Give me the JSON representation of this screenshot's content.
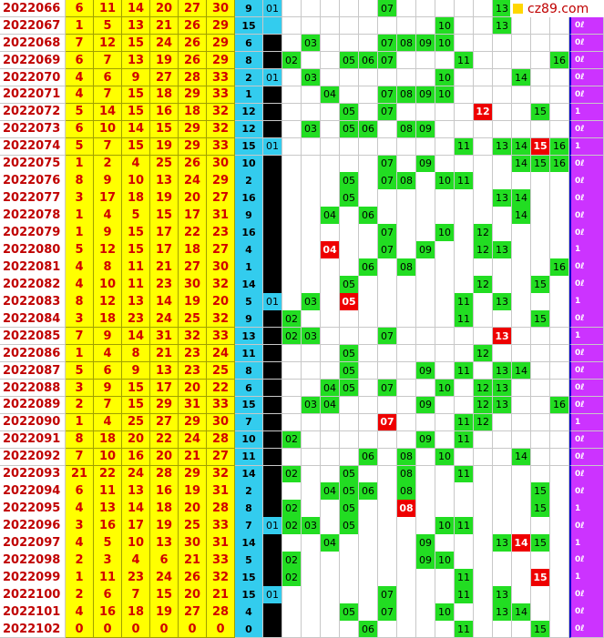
{
  "logo": "cz89.com",
  "rows": [
    {
      "issue": "2022066",
      "reds": [
        6,
        11,
        14,
        20,
        27,
        30
      ],
      "blue": 9,
      "dark": false,
      "c1": "01",
      "cells": [
        "07",
        "13"
      ],
      "hot": []
    },
    {
      "issue": "2022067",
      "reds": [
        1,
        5,
        13,
        21,
        26,
        29
      ],
      "blue": 15,
      "dark": false,
      "cells": [
        "10",
        "13"
      ],
      "hot": [],
      "tag": "0ℓ"
    },
    {
      "issue": "2022068",
      "reds": [
        7,
        12,
        15,
        24,
        26,
        29
      ],
      "blue": 6,
      "dark": true,
      "cells": [
        "03",
        "07",
        "08",
        "09",
        "10"
      ],
      "hot": [],
      "tag": "0ℓ"
    },
    {
      "issue": "2022069",
      "reds": [
        6,
        7,
        13,
        19,
        26,
        29
      ],
      "blue": 8,
      "dark": true,
      "cells": [
        "02",
        "05",
        "06",
        "07",
        "11",
        "16"
      ],
      "hot": [],
      "tag": "0ℓ"
    },
    {
      "issue": "2022070",
      "reds": [
        4,
        6,
        9,
        27,
        28,
        33
      ],
      "blue": 2,
      "dark": false,
      "c1": "01",
      "cells": [
        "03",
        "10",
        "14"
      ],
      "hot": [],
      "tag": "0ℓ"
    },
    {
      "issue": "2022071",
      "reds": [
        4,
        7,
        15,
        18,
        29,
        33
      ],
      "blue": 1,
      "dark": true,
      "cells": [
        "04",
        "07",
        "08",
        "09",
        "10"
      ],
      "hot": [],
      "tag": "0ℓ"
    },
    {
      "issue": "2022072",
      "reds": [
        5,
        14,
        15,
        16,
        18,
        32
      ],
      "blue": 12,
      "dark": true,
      "cells": [
        "05",
        "07",
        "15"
      ],
      "hot": [
        "12"
      ],
      "tag": "1"
    },
    {
      "issue": "2022073",
      "reds": [
        6,
        10,
        14,
        15,
        29,
        32
      ],
      "blue": 12,
      "dark": true,
      "cells": [
        "03",
        "05",
        "06",
        "08",
        "09"
      ],
      "hot": [],
      "tag": "0ℓ"
    },
    {
      "issue": "2022074",
      "reds": [
        5,
        7,
        15,
        19,
        29,
        33
      ],
      "blue": 15,
      "dark": false,
      "c1": "01",
      "cells": [
        "11",
        "13",
        "14",
        "16"
      ],
      "hot": [
        "15"
      ],
      "tag": "1"
    },
    {
      "issue": "2022075",
      "reds": [
        1,
        2,
        4,
        25,
        26,
        30
      ],
      "blue": 10,
      "dark": true,
      "cells": [
        "07",
        "09",
        "14",
        "15",
        "16"
      ],
      "hot": [],
      "tag": "0ℓ"
    },
    {
      "issue": "2022076",
      "reds": [
        8,
        9,
        10,
        13,
        24,
        29
      ],
      "blue": 2,
      "dark": true,
      "cells": [
        "05",
        "07",
        "08",
        "10",
        "11"
      ],
      "hot": [],
      "tag": "0ℓ"
    },
    {
      "issue": "2022077",
      "reds": [
        3,
        17,
        18,
        19,
        20,
        27
      ],
      "blue": 16,
      "dark": true,
      "cells": [
        "05",
        "13",
        "14"
      ],
      "hot": [],
      "tag": "0ℓ"
    },
    {
      "issue": "2022078",
      "reds": [
        1,
        4,
        5,
        15,
        17,
        31
      ],
      "blue": 9,
      "dark": true,
      "cells": [
        "04",
        "06",
        "14"
      ],
      "hot": [],
      "tag": "0ℓ"
    },
    {
      "issue": "2022079",
      "reds": [
        1,
        9,
        15,
        17,
        22,
        23
      ],
      "blue": 16,
      "dark": true,
      "cells": [
        "07",
        "10",
        "12"
      ],
      "hot": [],
      "tag": "0ℓ"
    },
    {
      "issue": "2022080",
      "reds": [
        5,
        12,
        15,
        17,
        18,
        27
      ],
      "blue": 4,
      "dark": true,
      "cells": [
        "07",
        "09",
        "12",
        "13"
      ],
      "hot": [
        "04"
      ],
      "tag": "1"
    },
    {
      "issue": "2022081",
      "reds": [
        4,
        8,
        11,
        21,
        27,
        30
      ],
      "blue": 1,
      "dark": true,
      "cells": [
        "06",
        "08",
        "16"
      ],
      "hot": [],
      "tag": "0ℓ"
    },
    {
      "issue": "2022082",
      "reds": [
        4,
        10,
        11,
        23,
        30,
        32
      ],
      "blue": 14,
      "dark": true,
      "cells": [
        "05",
        "12",
        "15"
      ],
      "hot": [],
      "tag": "0ℓ"
    },
    {
      "issue": "2022083",
      "reds": [
        8,
        12,
        13,
        14,
        19,
        20
      ],
      "blue": 5,
      "dark": false,
      "c1": "01",
      "cells": [
        "03",
        "11",
        "13"
      ],
      "hot": [
        "05"
      ],
      "tag": "1"
    },
    {
      "issue": "2022084",
      "reds": [
        3,
        18,
        23,
        24,
        25,
        32
      ],
      "blue": 9,
      "dark": true,
      "cells": [
        "02",
        "11",
        "15"
      ],
      "hot": [],
      "tag": "0ℓ"
    },
    {
      "issue": "2022085",
      "reds": [
        7,
        9,
        14,
        31,
        32,
        33
      ],
      "blue": 13,
      "dark": true,
      "cells": [
        "02",
        "03",
        "07"
      ],
      "hot": [
        "13"
      ],
      "tag": "1"
    },
    {
      "issue": "2022086",
      "reds": [
        1,
        4,
        8,
        21,
        23,
        24
      ],
      "blue": 11,
      "dark": true,
      "cells": [
        "05",
        "12"
      ],
      "hot": [],
      "tag": "0ℓ"
    },
    {
      "issue": "2022087",
      "reds": [
        5,
        6,
        9,
        13,
        23,
        25
      ],
      "blue": 8,
      "dark": true,
      "cells": [
        "05",
        "09",
        "11",
        "13",
        "14"
      ],
      "hot": [],
      "tag": "0ℓ"
    },
    {
      "issue": "2022088",
      "reds": [
        3,
        9,
        15,
        17,
        20,
        22
      ],
      "blue": 6,
      "dark": true,
      "cells": [
        "04",
        "05",
        "07",
        "10",
        "12",
        "13"
      ],
      "hot": [],
      "tag": "0ℓ"
    },
    {
      "issue": "2022089",
      "reds": [
        2,
        7,
        15,
        29,
        31,
        33
      ],
      "blue": 15,
      "dark": true,
      "cells": [
        "03",
        "04",
        "09",
        "12",
        "13",
        "16"
      ],
      "hot": [],
      "tag": "0ℓ"
    },
    {
      "issue": "2022090",
      "reds": [
        1,
        4,
        25,
        27,
        29,
        30
      ],
      "blue": 7,
      "dark": true,
      "cells": [
        "11",
        "12"
      ],
      "hot": [
        "07"
      ],
      "tag": "1"
    },
    {
      "issue": "2022091",
      "reds": [
        8,
        18,
        20,
        22,
        24,
        28
      ],
      "blue": 10,
      "dark": true,
      "cells": [
        "02",
        "09",
        "11"
      ],
      "hot": [],
      "tag": "0ℓ"
    },
    {
      "issue": "2022092",
      "reds": [
        7,
        10,
        16,
        20,
        21,
        27
      ],
      "blue": 11,
      "dark": true,
      "cells": [
        "06",
        "08",
        "10",
        "14"
      ],
      "hot": [],
      "tag": "0ℓ"
    },
    {
      "issue": "2022093",
      "reds": [
        21,
        22,
        24,
        28,
        29,
        32
      ],
      "blue": 14,
      "dark": true,
      "cells": [
        "02",
        "05",
        "08",
        "11"
      ],
      "hot": [],
      "tag": "0ℓ"
    },
    {
      "issue": "2022094",
      "reds": [
        6,
        11,
        13,
        16,
        19,
        31
      ],
      "blue": 2,
      "dark": true,
      "cells": [
        "04",
        "05",
        "06",
        "08",
        "15"
      ],
      "hot": [],
      "tag": "0ℓ"
    },
    {
      "issue": "2022095",
      "reds": [
        4,
        13,
        14,
        18,
        20,
        28
      ],
      "blue": 8,
      "dark": true,
      "cells": [
        "02",
        "05",
        "15"
      ],
      "hot": [
        "08"
      ],
      "tag": "1"
    },
    {
      "issue": "2022096",
      "reds": [
        3,
        16,
        17,
        19,
        25,
        33
      ],
      "blue": 7,
      "dark": false,
      "c1": "01",
      "cells": [
        "02",
        "03",
        "05",
        "10",
        "11"
      ],
      "hot": [],
      "tag": "0ℓ"
    },
    {
      "issue": "2022097",
      "reds": [
        4,
        5,
        10,
        13,
        30,
        31
      ],
      "blue": 14,
      "dark": true,
      "cells": [
        "04",
        "09",
        "13",
        "15"
      ],
      "hot": [
        "14"
      ],
      "tag": "1"
    },
    {
      "issue": "2022098",
      "reds": [
        2,
        3,
        4,
        6,
        21,
        33
      ],
      "blue": 5,
      "dark": true,
      "cells": [
        "02",
        "09",
        "10"
      ],
      "hot": [],
      "tag": "0ℓ"
    },
    {
      "issue": "2022099",
      "reds": [
        1,
        11,
        23,
        24,
        26,
        32
      ],
      "blue": 15,
      "dark": true,
      "cells": [
        "02",
        "11"
      ],
      "hot": [
        "15"
      ],
      "tag": "1"
    },
    {
      "issue": "2022100",
      "reds": [
        2,
        6,
        7,
        15,
        20,
        21
      ],
      "blue": 15,
      "dark": false,
      "c1": "01",
      "cells": [
        "07",
        "11",
        "13"
      ],
      "hot": [],
      "tag": "0ℓ"
    },
    {
      "issue": "2022101",
      "reds": [
        4,
        16,
        18,
        19,
        27,
        28
      ],
      "blue": 4,
      "dark": true,
      "cells": [
        "05",
        "07",
        "10",
        "13",
        "14"
      ],
      "hot": [],
      "tag": "0ℓ"
    },
    {
      "issue": "2022102",
      "reds": [
        0,
        0,
        0,
        0,
        0,
        0
      ],
      "blue": 0,
      "dark": true,
      "cells": [
        "06",
        "11",
        "15"
      ],
      "hot": [],
      "tag": "0ℓ"
    }
  ]
}
